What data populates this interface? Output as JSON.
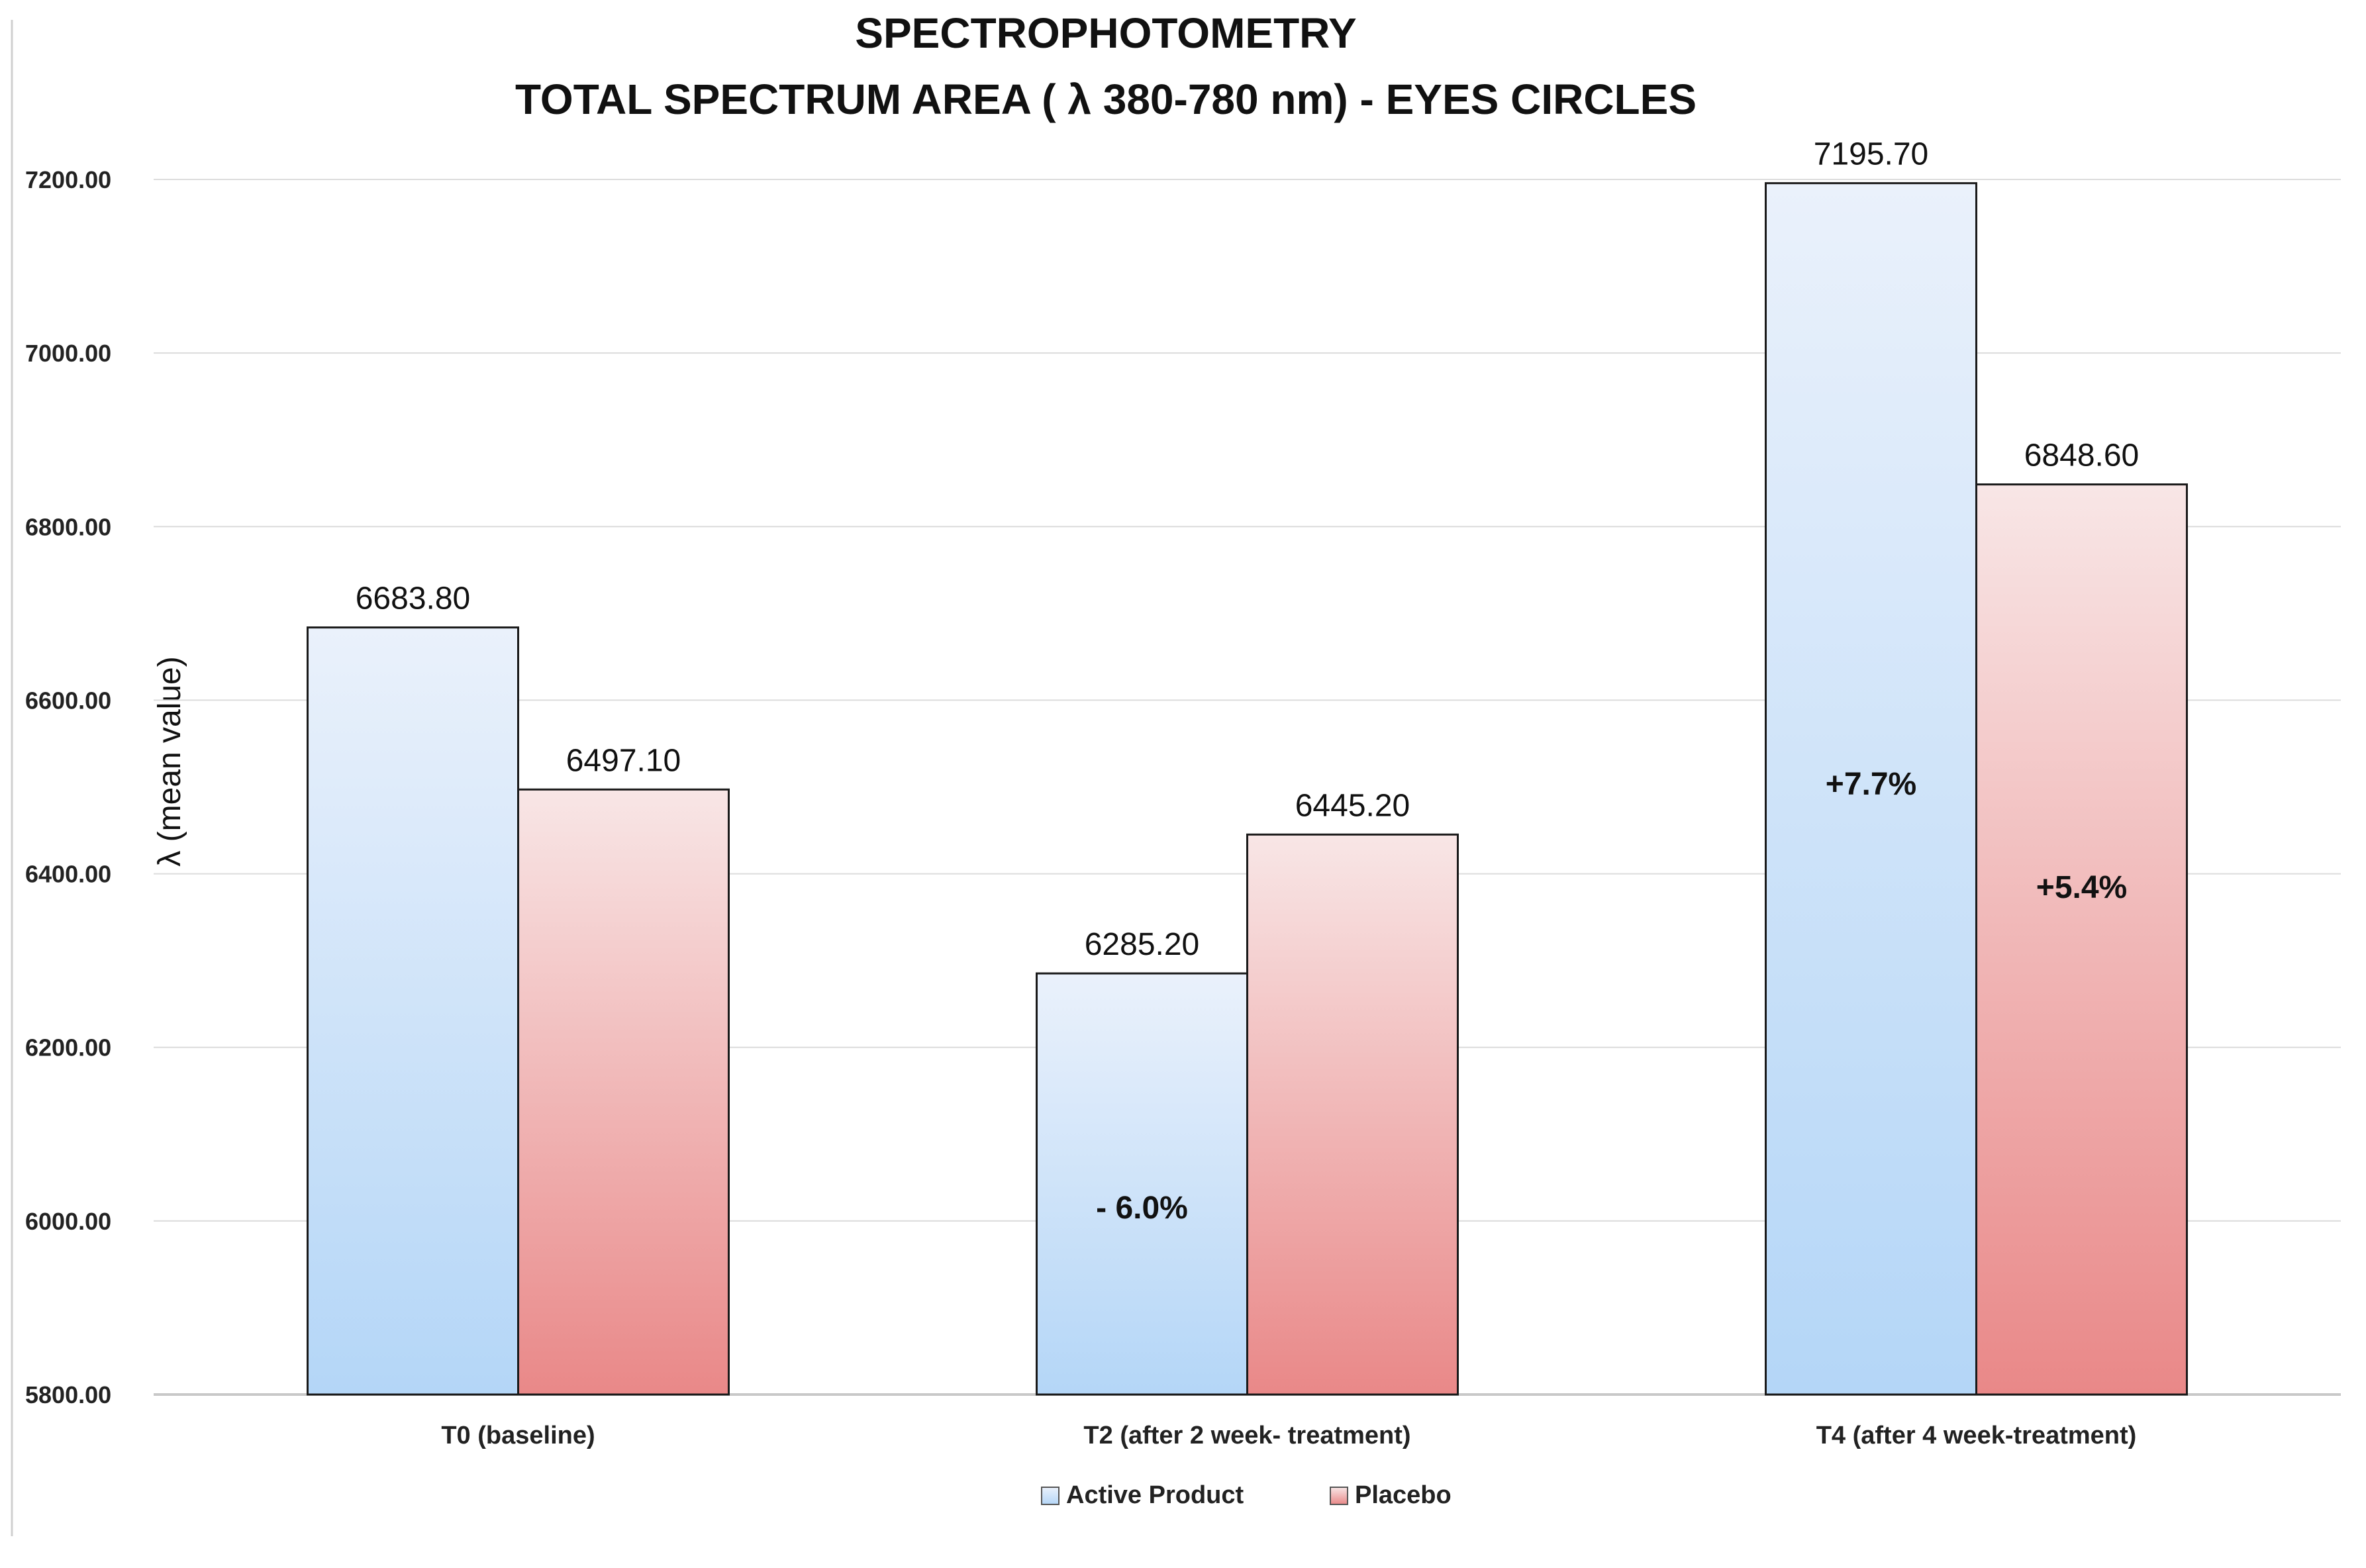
{
  "chart_data": {
    "type": "bar",
    "title": "SPECTROPHOTOMETRY",
    "subtitle": "TOTAL SPECTRUM AREA ( λ 380-780 nm) - EYES CIRCLES",
    "xlabel": "",
    "ylabel": "λ (mean value)",
    "ylim": [
      5800,
      7200
    ],
    "yticks": [
      "7200.00",
      "7000.00",
      "6800.00",
      "6600.00",
      "6400.00",
      "6200.00",
      "6000.00",
      "5800.00"
    ],
    "ytick_values": [
      7200,
      7000,
      6800,
      6600,
      6400,
      6200,
      6000,
      5800
    ],
    "grid": true,
    "legend_position": "bottom",
    "categories": [
      "T0 (baseline)",
      "T2 (after 2 week- treatment)",
      "T4 (after 4 week-treatment)"
    ],
    "series": [
      {
        "name": "Active Product",
        "values": [
          6683.8,
          6285.2,
          7195.7
        ],
        "value_labels": [
          "6683.80",
          "6285.20",
          "7195.70"
        ],
        "annotations": [
          "",
          "- 6.0%",
          "+7.7%"
        ],
        "color_top": "#eaf1fb",
        "color_bottom": "#b4d6f7"
      },
      {
        "name": "Placebo",
        "values": [
          6497.1,
          6445.2,
          6848.6
        ],
        "value_labels": [
          "6497.10",
          "6445.20",
          "6848.60"
        ],
        "annotations": [
          "",
          "",
          "+5.4%"
        ],
        "color_top": "#f8e6e6",
        "color_bottom": "#e98888"
      }
    ]
  }
}
